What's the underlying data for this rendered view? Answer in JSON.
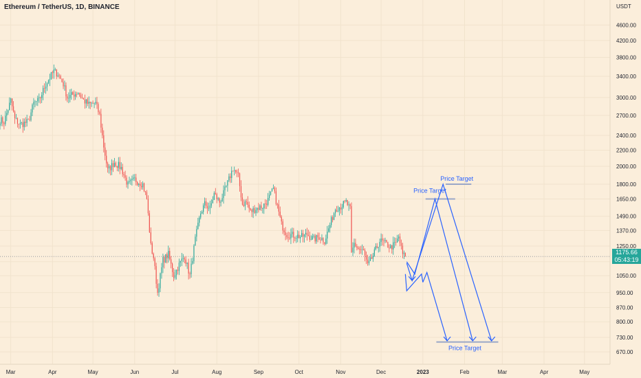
{
  "header": {
    "title": "Ethereum / TetherUS, 1D, BINANCE",
    "currency": "USDT"
  },
  "last_price": {
    "value": "1175.66",
    "countdown": "05:43:19",
    "color": "#26a69a"
  },
  "colors": {
    "background": "#fbeedb",
    "up_candle": "#26a69a",
    "down_candle": "#ef5350",
    "drawing": "#2962ff",
    "target_line": "#9aa7c7"
  },
  "chart_data": {
    "type": "candlestick",
    "title": "Ethereum / TetherUS, 1D, BINANCE",
    "y_scale": "log",
    "ylim": [
      640,
      5000
    ],
    "y_ticks": [
      670,
      730,
      800,
      870,
      950,
      1050,
      1140,
      1250,
      1370,
      1490,
      1650,
      1800,
      2000,
      2200,
      2400,
      2700,
      3000,
      3400,
      3800,
      4200,
      4600
    ],
    "y_tick_labels": [
      "670.00",
      "730.00",
      "800.00",
      "870.00",
      "950.00",
      "1050.00",
      "1140.00",
      "1250.00",
      "1370.00",
      "1490.00",
      "1650.00",
      "1800.00",
      "2000.00",
      "2200.00",
      "2400.00",
      "2700.00",
      "3000.00",
      "3400.00",
      "3800.00",
      "4200.00",
      "4600.00"
    ],
    "x_ticks": [
      "Mar",
      "Apr",
      "May",
      "Jun",
      "Jul",
      "Aug",
      "Sep",
      "Oct",
      "Nov",
      "Dec",
      "2023",
      "Feb",
      "Mar",
      "Apr",
      "May"
    ],
    "x_range": [
      "2022-02-21",
      "2023-05-20"
    ],
    "close_path": [
      [
        "2022-02-21",
        2630
      ],
      [
        "2022-02-24",
        2600
      ],
      [
        "2022-03-01",
        2950
      ],
      [
        "2022-03-04",
        2640
      ],
      [
        "2022-03-08",
        2560
      ],
      [
        "2022-03-14",
        2600
      ],
      [
        "2022-03-18",
        2900
      ],
      [
        "2022-03-22",
        2950
      ],
      [
        "2022-03-27",
        3250
      ],
      [
        "2022-04-02",
        3500
      ],
      [
        "2022-04-05",
        3450
      ],
      [
        "2022-04-09",
        3250
      ],
      [
        "2022-04-12",
        3000
      ],
      [
        "2022-04-16",
        3050
      ],
      [
        "2022-04-20",
        3100
      ],
      [
        "2022-04-24",
        2950
      ],
      [
        "2022-04-28",
        2880
      ],
      [
        "2022-05-03",
        2900
      ],
      [
        "2022-05-06",
        2700
      ],
      [
        "2022-05-09",
        2250
      ],
      [
        "2022-05-12",
        1950
      ],
      [
        "2022-05-17",
        2050
      ],
      [
        "2022-05-22",
        1980
      ],
      [
        "2022-05-27",
        1790
      ],
      [
        "2022-06-01",
        1850
      ],
      [
        "2022-06-07",
        1800
      ],
      [
        "2022-06-10",
        1650
      ],
      [
        "2022-06-13",
        1250
      ],
      [
        "2022-06-15",
        1170
      ],
      [
        "2022-06-18",
        950
      ],
      [
        "2022-06-22",
        1150
      ],
      [
        "2022-06-26",
        1190
      ],
      [
        "2022-06-30",
        1050
      ],
      [
        "2022-07-04",
        1120
      ],
      [
        "2022-07-08",
        1180
      ],
      [
        "2022-07-12",
        1050
      ],
      [
        "2022-07-16",
        1300
      ],
      [
        "2022-07-20",
        1520
      ],
      [
        "2022-07-23",
        1600
      ],
      [
        "2022-07-27",
        1560
      ],
      [
        "2022-07-30",
        1700
      ],
      [
        "2022-08-03",
        1620
      ],
      [
        "2022-08-06",
        1700
      ],
      [
        "2022-08-10",
        1850
      ],
      [
        "2022-08-13",
        1980
      ],
      [
        "2022-08-17",
        1880
      ],
      [
        "2022-08-20",
        1600
      ],
      [
        "2022-08-23",
        1620
      ],
      [
        "2022-08-26",
        1530
      ],
      [
        "2022-08-30",
        1560
      ],
      [
        "2022-09-04",
        1580
      ],
      [
        "2022-09-08",
        1640
      ],
      [
        "2022-09-12",
        1750
      ],
      [
        "2022-09-15",
        1580
      ],
      [
        "2022-09-18",
        1420
      ],
      [
        "2022-09-22",
        1340
      ],
      [
        "2022-09-28",
        1330
      ],
      [
        "2022-10-03",
        1320
      ],
      [
        "2022-10-07",
        1340
      ],
      [
        "2022-10-12",
        1300
      ],
      [
        "2022-10-16",
        1320
      ],
      [
        "2022-10-20",
        1290
      ],
      [
        "2022-10-25",
        1450
      ],
      [
        "2022-10-28",
        1560
      ],
      [
        "2022-11-01",
        1580
      ],
      [
        "2022-11-05",
        1620
      ],
      [
        "2022-11-08",
        1550
      ],
      [
        "2022-11-09",
        1190
      ],
      [
        "2022-11-11",
        1270
      ],
      [
        "2022-11-14",
        1230
      ],
      [
        "2022-11-18",
        1210
      ],
      [
        "2022-11-21",
        1110
      ],
      [
        "2022-11-25",
        1180
      ],
      [
        "2022-11-30",
        1290
      ],
      [
        "2022-12-04",
        1270
      ],
      [
        "2022-12-08",
        1240
      ],
      [
        "2022-12-12",
        1270
      ],
      [
        "2022-12-14",
        1320
      ],
      [
        "2022-12-17",
        1190
      ],
      [
        "2022-12-19",
        1175.66
      ]
    ],
    "annotations": [
      {
        "text": "Price Target",
        "price": 1800
      },
      {
        "text": "Price Target",
        "price": 1650
      },
      {
        "text": "Price Target",
        "price": 710
      }
    ]
  }
}
